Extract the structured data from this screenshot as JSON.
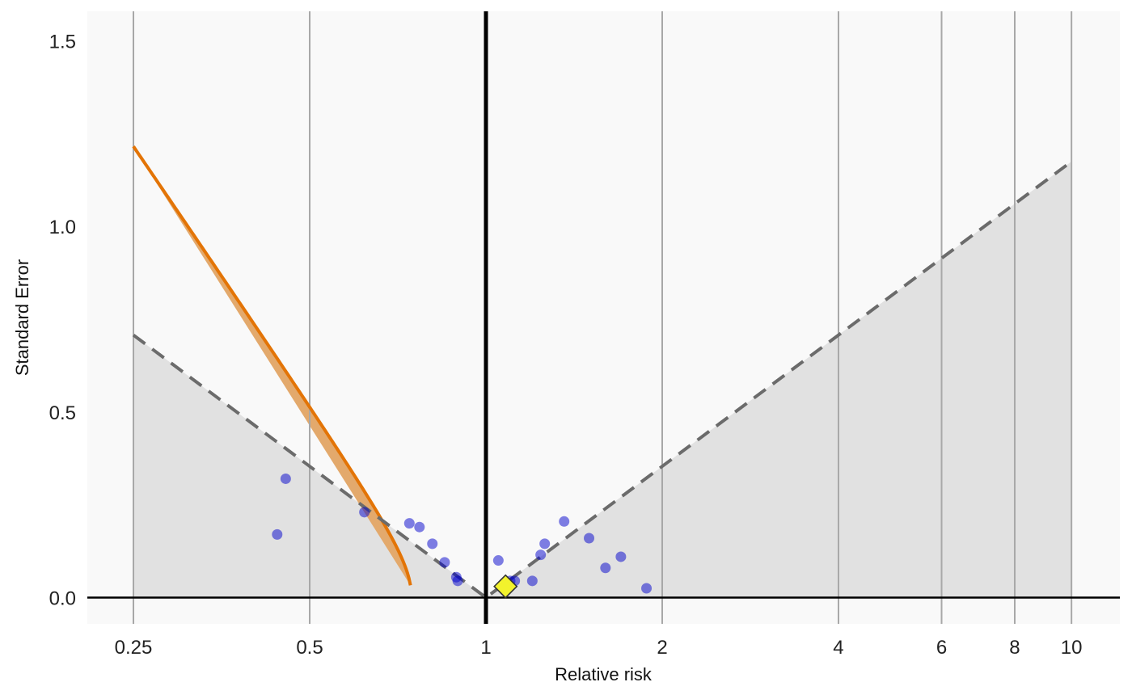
{
  "chart_data": {
    "type": "scatter",
    "title": "",
    "xlabel": "Relative risk",
    "ylabel": "Standard Error",
    "x_scale": "log",
    "xlim": [
      0.2,
      12
    ],
    "ylim": [
      -0.07,
      1.57
    ],
    "x_ticks": [
      {
        "value": 0.25,
        "label": "0.25"
      },
      {
        "value": 0.5,
        "label": "0.5"
      },
      {
        "value": 1,
        "label": "1"
      },
      {
        "value": 2,
        "label": "2"
      },
      {
        "value": 4,
        "label": "4"
      },
      {
        "value": 6,
        "label": "6"
      },
      {
        "value": 8,
        "label": "8"
      },
      {
        "value": 10,
        "label": "10"
      }
    ],
    "y_ticks": [
      {
        "value": 0,
        "label": "0.0"
      },
      {
        "value": 0.5,
        "label": "0.5"
      },
      {
        "value": 1,
        "label": "1.0"
      },
      {
        "value": 1.5,
        "label": "1.5"
      }
    ],
    "grid": "vertical",
    "reference_line_x": 1,
    "funnel_dashed": {
      "x_min": 0.25,
      "x_max": 10,
      "se_per_log_unit": 0.51
    },
    "easy_region_boundary": {
      "critical_se": 0.1,
      "z_alpha": 1.645,
      "z_power": 1.282
    },
    "colors": {
      "panel_background": "#f9f9f9",
      "funnel_fill": "#e1e1e1",
      "region_fill": "#e3a96c",
      "region_line": "#e37406",
      "dashed_line": "#6b6b6b",
      "point": "#0000cc",
      "estimate_fill": "#f2f22c",
      "gridline": "#a8a8a8"
    },
    "points": [
      {
        "x": 0.44,
        "y": 0.17
      },
      {
        "x": 0.455,
        "y": 0.32
      },
      {
        "x": 0.62,
        "y": 0.23
      },
      {
        "x": 0.74,
        "y": 0.2
      },
      {
        "x": 0.77,
        "y": 0.19
      },
      {
        "x": 0.81,
        "y": 0.145
      },
      {
        "x": 0.85,
        "y": 0.095
      },
      {
        "x": 0.89,
        "y": 0.055
      },
      {
        "x": 0.895,
        "y": 0.045
      },
      {
        "x": 1.05,
        "y": 0.1
      },
      {
        "x": 1.1,
        "y": 0.045
      },
      {
        "x": 1.12,
        "y": 0.045
      },
      {
        "x": 1.2,
        "y": 0.045
      },
      {
        "x": 1.24,
        "y": 0.115
      },
      {
        "x": 1.26,
        "y": 0.145
      },
      {
        "x": 1.36,
        "y": 0.205
      },
      {
        "x": 1.5,
        "y": 0.16
      },
      {
        "x": 1.6,
        "y": 0.08
      },
      {
        "x": 1.7,
        "y": 0.11
      },
      {
        "x": 1.88,
        "y": 0.025
      }
    ],
    "summary_estimate": {
      "x": 1.08,
      "y": 0.03
    }
  }
}
